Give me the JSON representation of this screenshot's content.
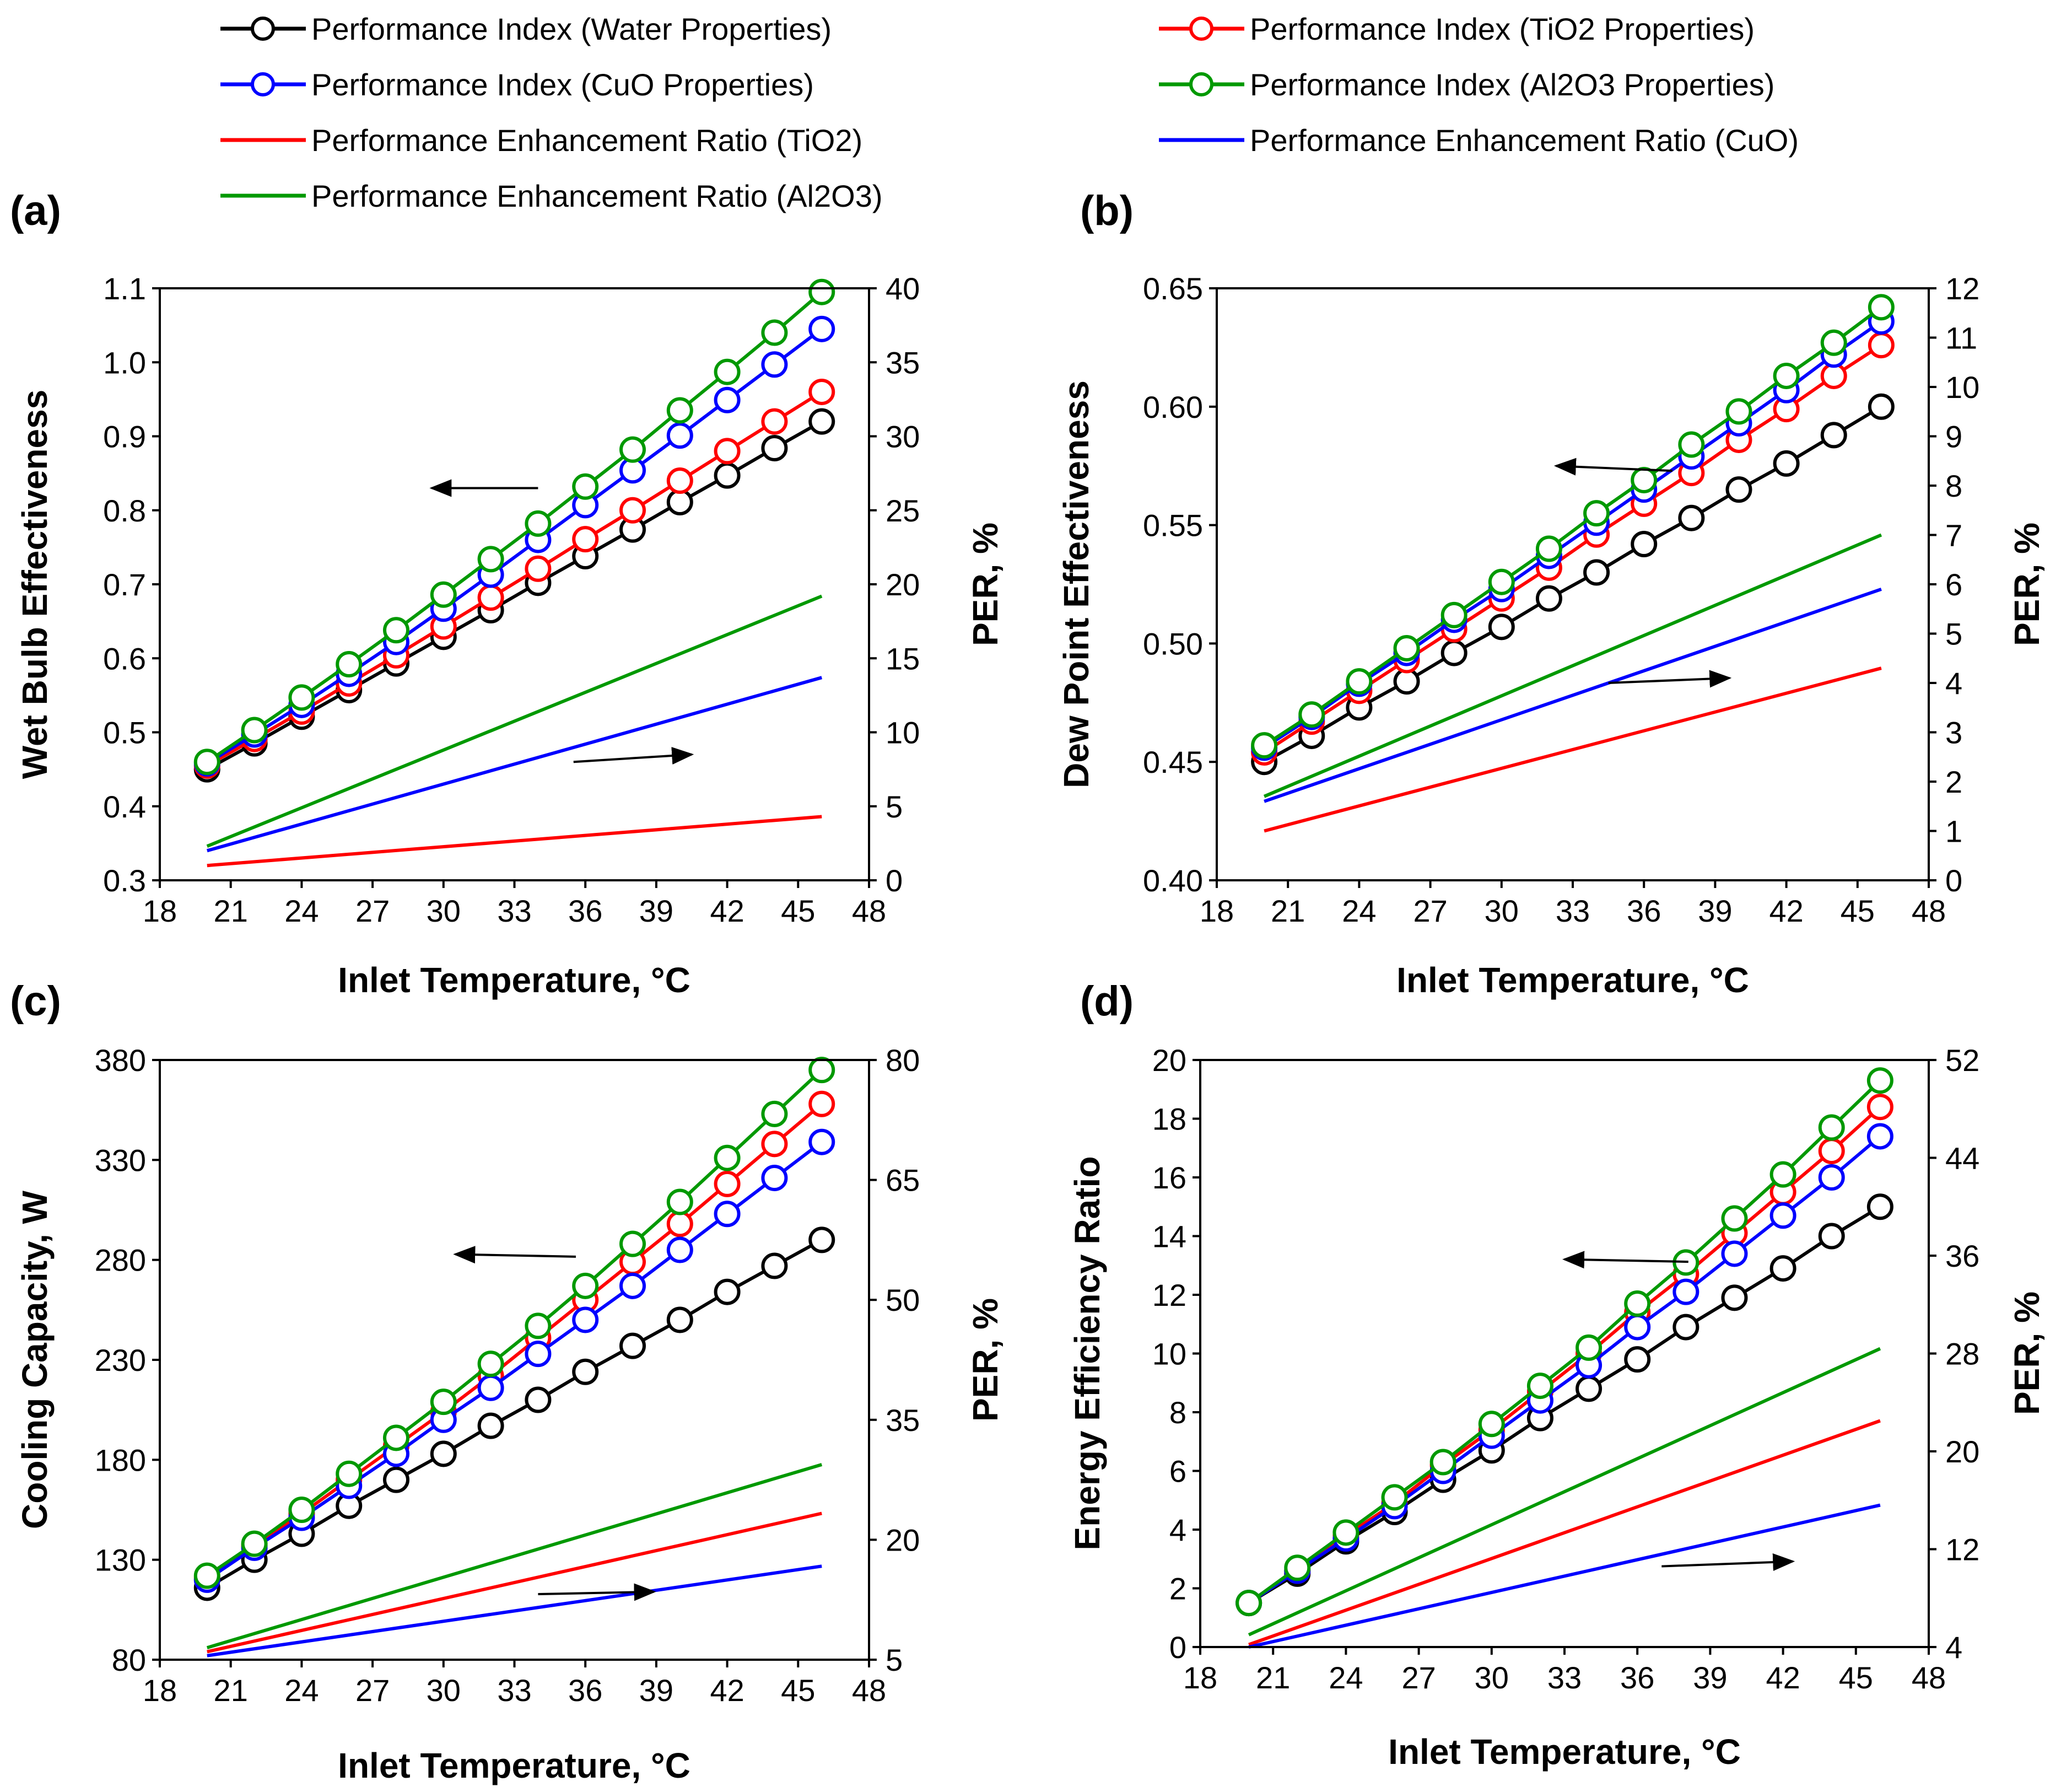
{
  "legend": [
    {
      "label": "Performance Index (Water Properties)",
      "color": "#000000",
      "marker": true
    },
    {
      "label": "Performance Index  (TiO2 Properties)",
      "color": "#ff0000",
      "marker": true
    },
    {
      "label": "Performance Index (CuO Properties)",
      "color": "#0000ff",
      "marker": true
    },
    {
      "label": "Performance Index (Al2O3 Properties)",
      "color": "#009900",
      "marker": true
    },
    {
      "label": "Performance Enhancement Ratio (TiO2)",
      "color": "#ff0000",
      "marker": false
    },
    {
      "label": "Performance Enhancement Ratio (CuO)",
      "color": "#0000ff",
      "marker": false
    },
    {
      "label": "Performance Enhancement Ratio (Al2O3)",
      "color": "#009900",
      "marker": false
    }
  ],
  "chart_data": [
    {
      "panel": "(a)",
      "type": "line",
      "title": "",
      "xlabel": "Inlet Temperature, °C",
      "ylabel": "Wet Bulb Effectiveness",
      "y2label": "PER, %",
      "xlim": [
        18,
        48
      ],
      "xticks": [
        18,
        21,
        24,
        27,
        30,
        33,
        36,
        39,
        42,
        45,
        48
      ],
      "ylim": [
        0.3,
        1.1
      ],
      "yticks": [
        "0.3",
        "0.4",
        "0.5",
        "0.6",
        "0.7",
        "0.8",
        "0.9",
        "1.0",
        "1.1"
      ],
      "y2lim": [
        0,
        40
      ],
      "y2ticks": [
        0,
        5,
        10,
        15,
        20,
        25,
        30,
        35,
        40
      ],
      "x": [
        20,
        22,
        24,
        26,
        28,
        30,
        32,
        34,
        36,
        38,
        40,
        42,
        44,
        46
      ],
      "series": [
        {
          "name": "Performance Index (Water Properties)",
          "color": "#000000",
          "axis": "left",
          "marker": true,
          "values": [
            0.45,
            0.485,
            0.521,
            0.557,
            0.593,
            0.629,
            0.665,
            0.702,
            0.738,
            0.774,
            0.811,
            0.847,
            0.884,
            0.92
          ]
        },
        {
          "name": "Performance Index  (TiO2 Properties)",
          "color": "#ff0000",
          "axis": "left",
          "marker": true,
          "values": [
            0.455,
            0.491,
            0.528,
            0.566,
            0.604,
            0.643,
            0.682,
            0.721,
            0.761,
            0.8,
            0.84,
            0.88,
            0.92,
            0.96
          ]
        },
        {
          "name": "Performance Index (CuO Properties)",
          "color": "#0000ff",
          "axis": "left",
          "marker": true,
          "values": [
            0.458,
            0.497,
            0.537,
            0.579,
            0.622,
            0.667,
            0.713,
            0.76,
            0.807,
            0.854,
            0.901,
            0.949,
            0.997,
            1.045
          ]
        },
        {
          "name": "Performance Index (Al2O3 Properties)",
          "color": "#009900",
          "axis": "left",
          "marker": true,
          "values": [
            0.46,
            0.503,
            0.547,
            0.592,
            0.638,
            0.686,
            0.734,
            0.782,
            0.832,
            0.882,
            0.935,
            0.987,
            1.04,
            1.095
          ]
        },
        {
          "name": "Performance Enhancement Ratio (TiO2)",
          "color": "#ff0000",
          "axis": "right",
          "marker": false,
          "x": [
            20,
            46
          ],
          "values": [
            1.0,
            4.3
          ]
        },
        {
          "name": "Performance Enhancement Ratio (CuO)",
          "color": "#0000ff",
          "axis": "right",
          "marker": false,
          "x": [
            20,
            46
          ],
          "values": [
            2.0,
            13.7
          ]
        },
        {
          "name": "Performance Enhancement Ratio (Al2O3)",
          "color": "#009900",
          "axis": "right",
          "marker": false,
          "x": [
            20,
            46
          ],
          "values": [
            2.3,
            19.2
          ]
        }
      ],
      "arrows": [
        {
          "x1": 34,
          "y1": 26.5,
          "x2": 29.5,
          "y2": 26.5,
          "axis": "right"
        },
        {
          "x1": 35.5,
          "y1": 8.0,
          "x2": 40.5,
          "y2": 8.5,
          "axis": "right"
        }
      ]
    },
    {
      "panel": "(b)",
      "type": "line",
      "title": "",
      "xlabel": "Inlet Temperature, °C",
      "ylabel": "Dew Point Effectiveness",
      "y2label": "PER, %",
      "xlim": [
        18,
        48
      ],
      "xticks": [
        18,
        21,
        24,
        27,
        30,
        33,
        36,
        39,
        42,
        45,
        48
      ],
      "ylim": [
        0.4,
        0.65
      ],
      "yticks": [
        "0.40",
        "0.45",
        "0.50",
        "0.55",
        "0.60",
        "0.65"
      ],
      "y2lim": [
        0,
        12
      ],
      "y2ticks": [
        0,
        1,
        2,
        3,
        4,
        5,
        6,
        7,
        8,
        9,
        10,
        11,
        12
      ],
      "x": [
        20,
        22,
        24,
        26,
        28,
        30,
        32,
        34,
        36,
        38,
        40,
        42,
        44,
        46
      ],
      "series": [
        {
          "name": "Performance Index (Water Properties)",
          "color": "#000000",
          "axis": "left",
          "marker": true,
          "values": [
            0.45,
            0.461,
            0.473,
            0.484,
            0.496,
            0.507,
            0.519,
            0.53,
            0.542,
            0.553,
            0.565,
            0.576,
            0.588,
            0.6
          ]
        },
        {
          "name": "Performance Index  (TiO2 Properties)",
          "color": "#ff0000",
          "axis": "left",
          "marker": true,
          "values": [
            0.454,
            0.467,
            0.48,
            0.493,
            0.506,
            0.519,
            0.532,
            0.546,
            0.559,
            0.572,
            0.586,
            0.599,
            0.613,
            0.626
          ]
        },
        {
          "name": "Performance Index (CuO Properties)",
          "color": "#0000ff",
          "axis": "left",
          "marker": true,
          "values": [
            0.456,
            0.469,
            0.483,
            0.496,
            0.51,
            0.523,
            0.537,
            0.551,
            0.565,
            0.579,
            0.593,
            0.607,
            0.622,
            0.636
          ]
        },
        {
          "name": "Performance Index (Al2O3 Properties)",
          "color": "#009900",
          "axis": "left",
          "marker": true,
          "values": [
            0.457,
            0.47,
            0.484,
            0.498,
            0.512,
            0.526,
            0.54,
            0.555,
            0.569,
            0.584,
            0.598,
            0.613,
            0.627,
            0.642
          ]
        },
        {
          "name": "Performance Enhancement Ratio (TiO2)",
          "color": "#ff0000",
          "axis": "right",
          "marker": false,
          "x": [
            20,
            46
          ],
          "values": [
            1.0,
            4.3
          ]
        },
        {
          "name": "Performance Enhancement Ratio (CuO)",
          "color": "#0000ff",
          "axis": "right",
          "marker": false,
          "x": [
            20,
            46
          ],
          "values": [
            1.6,
            5.9
          ]
        },
        {
          "name": "Performance Enhancement Ratio (Al2O3)",
          "color": "#009900",
          "axis": "right",
          "marker": false,
          "x": [
            20,
            46
          ],
          "values": [
            1.7,
            7.0
          ]
        }
      ],
      "arrows": [
        {
          "x1": 37.2,
          "y1": 8.3,
          "x2": 32.3,
          "y2": 8.4,
          "axis": "right"
        },
        {
          "x1": 34.5,
          "y1": 4.0,
          "x2": 39.6,
          "y2": 4.1,
          "axis": "right"
        }
      ]
    },
    {
      "panel": "(c)",
      "type": "line",
      "title": "",
      "xlabel": "Inlet Temperature, °C",
      "ylabel": "Cooling Capacity, W",
      "y2label": "PER, %",
      "xlim": [
        18,
        48
      ],
      "xticks": [
        18,
        21,
        24,
        27,
        30,
        33,
        36,
        39,
        42,
        45,
        48
      ],
      "ylim": [
        80,
        380
      ],
      "yticks": [
        "80",
        "130",
        "180",
        "230",
        "280",
        "330",
        "380"
      ],
      "y2lim": [
        5,
        80
      ],
      "y2ticks": [
        5,
        20,
        35,
        50,
        65,
        80
      ],
      "x": [
        20,
        22,
        24,
        26,
        28,
        30,
        32,
        34,
        36,
        38,
        40,
        42,
        44,
        46
      ],
      "series": [
        {
          "name": "Performance Index (Water Properties)",
          "color": "#000000",
          "axis": "left",
          "marker": true,
          "values": [
            116,
            130,
            143,
            157,
            170,
            183,
            197,
            210,
            224,
            237,
            250,
            264,
            277,
            290
          ]
        },
        {
          "name": "Performance Index  (TiO2 Properties)",
          "color": "#ff0000",
          "axis": "left",
          "marker": true,
          "values": [
            121,
            137,
            153,
            170,
            187,
            204,
            222,
            241,
            260,
            279,
            298,
            318,
            338,
            358
          ]
        },
        {
          "name": "Performance Index (CuO Properties)",
          "color": "#0000ff",
          "axis": "left",
          "marker": true,
          "values": [
            120,
            136,
            151,
            167,
            183,
            200,
            216,
            233,
            250,
            267,
            285,
            303,
            321,
            339
          ]
        },
        {
          "name": "Performance Index (Al2O3 Properties)",
          "color": "#009900",
          "axis": "left",
          "marker": true,
          "values": [
            122,
            138,
            155,
            173,
            191,
            209,
            228,
            247,
            267,
            288,
            309,
            331,
            353,
            375
          ]
        },
        {
          "name": "Performance Enhancement Ratio (TiO2)",
          "color": "#ff0000",
          "axis": "right",
          "marker": false,
          "x": [
            20,
            46
          ],
          "values": [
            6.0,
            23.3
          ]
        },
        {
          "name": "Performance Enhancement Ratio (CuO)",
          "color": "#0000ff",
          "axis": "right",
          "marker": false,
          "x": [
            20,
            46
          ],
          "values": [
            5.5,
            16.7
          ]
        },
        {
          "name": "Performance Enhancement Ratio (Al2O3)",
          "color": "#009900",
          "axis": "right",
          "marker": false,
          "x": [
            20,
            46
          ],
          "values": [
            6.5,
            29.4
          ]
        }
      ],
      "arrows": [
        {
          "x1": 35.6,
          "y1": 55.4,
          "x2": 30.5,
          "y2": 55.7,
          "axis": "right"
        },
        {
          "x1": 34.0,
          "y1": 13.2,
          "x2": 38.9,
          "y2": 13.5,
          "axis": "right"
        }
      ]
    },
    {
      "panel": "(d)",
      "type": "line",
      "title": "",
      "xlabel": "Inlet Temperature, °C",
      "ylabel": "Energy Efficiency Ratio",
      "y2label": "PER, %",
      "xlim": [
        18,
        48
      ],
      "xticks": [
        18,
        21,
        24,
        27,
        30,
        33,
        36,
        39,
        42,
        45,
        48
      ],
      "ylim": [
        0,
        20
      ],
      "yticks": [
        "0",
        "2",
        "4",
        "6",
        "8",
        "10",
        "12",
        "14",
        "16",
        "18",
        "20"
      ],
      "y2lim": [
        4,
        52
      ],
      "y2ticks": [
        4,
        12,
        20,
        28,
        36,
        44,
        52
      ],
      "x": [
        20,
        22,
        24,
        26,
        28,
        30,
        32,
        34,
        36,
        38,
        40,
        42,
        44,
        46
      ],
      "series": [
        {
          "name": "Performance Index (Water Properties)",
          "color": "#000000",
          "axis": "left",
          "marker": true,
          "values": [
            1.5,
            2.5,
            3.6,
            4.6,
            5.7,
            6.7,
            7.8,
            8.8,
            9.8,
            10.9,
            11.9,
            12.9,
            14.0,
            15.0
          ]
        },
        {
          "name": "Performance Index  (TiO2 Properties)",
          "color": "#ff0000",
          "axis": "left",
          "marker": true,
          "values": [
            1.5,
            2.6,
            3.8,
            4.9,
            6.2,
            7.4,
            8.7,
            10.0,
            11.4,
            12.7,
            14.1,
            15.5,
            16.9,
            18.4
          ]
        },
        {
          "name": "Performance Index (CuO Properties)",
          "color": "#0000ff",
          "axis": "left",
          "marker": true,
          "values": [
            1.5,
            2.6,
            3.7,
            4.8,
            6.0,
            7.2,
            8.4,
            9.6,
            10.9,
            12.1,
            13.4,
            14.7,
            16.0,
            17.4
          ]
        },
        {
          "name": "Performance Index (Al2O3 Properties)",
          "color": "#009900",
          "axis": "left",
          "marker": true,
          "values": [
            1.5,
            2.7,
            3.9,
            5.1,
            6.3,
            7.6,
            8.9,
            10.2,
            11.7,
            13.1,
            14.6,
            16.1,
            17.7,
            19.3
          ]
        },
        {
          "name": "Performance Enhancement Ratio (TiO2)",
          "color": "#ff0000",
          "axis": "right",
          "marker": false,
          "x": [
            20,
            46
          ],
          "values": [
            4.2,
            22.5
          ]
        },
        {
          "name": "Performance Enhancement Ratio (CuO)",
          "color": "#0000ff",
          "axis": "right",
          "marker": false,
          "x": [
            20,
            46
          ],
          "values": [
            4.0,
            15.6
          ]
        },
        {
          "name": "Performance Enhancement Ratio (Al2O3)",
          "color": "#009900",
          "axis": "right",
          "marker": false,
          "x": [
            20,
            46
          ],
          "values": [
            5.0,
            28.4
          ]
        }
      ],
      "arrows": [
        {
          "x1": 38.1,
          "y1": 35.5,
          "x2": 33.0,
          "y2": 35.7,
          "axis": "right"
        },
        {
          "x1": 37.0,
          "y1": 10.6,
          "x2": 42.4,
          "y2": 11.0,
          "axis": "right"
        }
      ]
    }
  ]
}
